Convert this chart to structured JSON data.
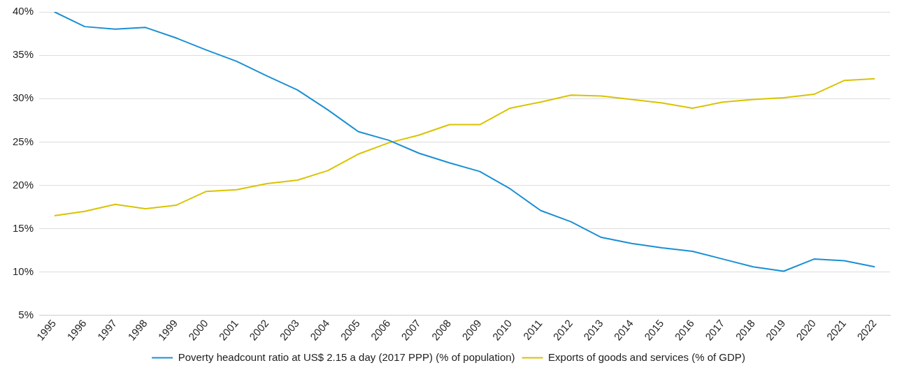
{
  "chart_data": {
    "type": "line",
    "categories": [
      "1995",
      "1996",
      "1997",
      "1998",
      "1999",
      "2000",
      "2001",
      "2002",
      "2003",
      "2004",
      "2005",
      "2006",
      "2007",
      "2008",
      "2009",
      "2010",
      "2011",
      "2012",
      "2013",
      "2014",
      "2015",
      "2016",
      "2017",
      "2018",
      "2019",
      "2020",
      "2021",
      "2022"
    ],
    "series": [
      {
        "name": "Poverty headcount ratio at US$ 2.15 a day (2017 PPP) (% of population)",
        "color": "#1a8fd4",
        "values": [
          40.0,
          38.3,
          38.0,
          38.2,
          37.0,
          35.6,
          34.3,
          32.6,
          31.0,
          28.7,
          26.2,
          25.2,
          23.7,
          22.6,
          21.6,
          19.6,
          17.1,
          15.8,
          14.0,
          13.3,
          12.8,
          12.4,
          11.5,
          10.6,
          10.1,
          11.5,
          11.3,
          10.6
        ]
      },
      {
        "name": "Exports of goods and services (% of GDP)",
        "color": "#d9c300",
        "values": [
          16.5,
          17.0,
          17.8,
          17.3,
          17.7,
          19.3,
          19.5,
          20.2,
          20.6,
          21.7,
          23.6,
          24.9,
          25.8,
          27.0,
          27.0,
          28.9,
          29.6,
          30.4,
          30.3,
          29.9,
          29.5,
          28.9,
          29.6,
          29.9,
          30.1,
          30.5,
          32.1,
          32.3
        ]
      }
    ],
    "ylim": [
      5,
      40
    ],
    "yticks": [
      {
        "value": 5,
        "label": "5%"
      },
      {
        "value": 10,
        "label": "10%"
      },
      {
        "value": 15,
        "label": "15%"
      },
      {
        "value": 20,
        "label": "20%"
      },
      {
        "value": 25,
        "label": "25%"
      },
      {
        "value": 30,
        "label": "30%"
      },
      {
        "value": 35,
        "label": "35%"
      },
      {
        "value": 40,
        "label": "40%"
      }
    ],
    "grid": "y",
    "legend": "bottom",
    "marker": "none",
    "line_style": "solid"
  }
}
